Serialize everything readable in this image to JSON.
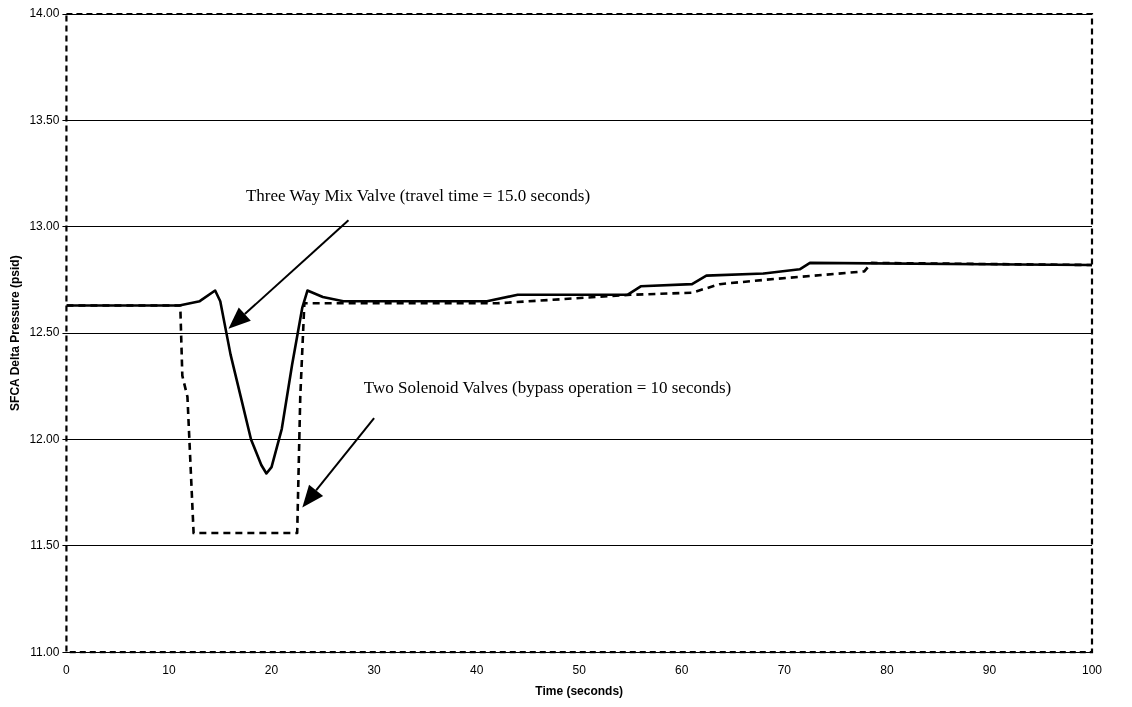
{
  "chart_data": {
    "type": "line",
    "xlabel": "Time (seconds)",
    "ylabel": "SFCA Delta Pressure (psid)",
    "xlim": [
      0,
      100
    ],
    "xticks": [
      0,
      10,
      20,
      30,
      40,
      50,
      60,
      70,
      80,
      90,
      100
    ],
    "ylim": [
      11,
      14
    ],
    "yticks": [
      {
        "value": 11,
        "label": "11.00"
      },
      {
        "value": 11.5,
        "label": "11.50"
      },
      {
        "value": 12,
        "label": "12.00"
      },
      {
        "value": 12.5,
        "label": "12.50"
      },
      {
        "value": 13,
        "label": "13.00"
      },
      {
        "value": 13.5,
        "label": "13.50"
      },
      {
        "value": 14,
        "label": "14.00"
      }
    ],
    "grid": "y",
    "legend": false,
    "marker": "none",
    "annotations": [
      "Three Way Mix Valve (travel time = 15.0 seconds)",
      "Two Solenoid Valves (bypass operation = 10 seconds)"
    ],
    "series": [
      {
        "color": "#000000",
        "line_style": "solid",
        "x": [
          0,
          11,
          13,
          14.5,
          15,
          16,
          17,
          18,
          19,
          19.5,
          20,
          21,
          22,
          23,
          23.5,
          25,
          27,
          41,
          44,
          54.7,
          56,
          61,
          62.4,
          68,
          71.5,
          72.5,
          100
        ],
        "values": [
          12.63,
          12.63,
          12.65,
          12.7,
          12.65,
          12.4,
          12.2,
          12.0,
          11.88,
          11.84,
          11.87,
          12.05,
          12.35,
          12.62,
          12.7,
          12.67,
          12.65,
          12.65,
          12.68,
          12.68,
          12.72,
          12.73,
          12.77,
          12.78,
          12.8,
          12.83,
          12.82
        ]
      },
      {
        "color": "#000000",
        "line_style": "dashed",
        "x": [
          0,
          11.1,
          11.3,
          11.8,
          12.4,
          22.5,
          22.8,
          23.2,
          25,
          42,
          55,
          61,
          63.7,
          68,
          77.8,
          78.5,
          100
        ],
        "values": [
          12.63,
          12.63,
          12.3,
          12.2,
          11.56,
          11.56,
          12.2,
          12.64,
          12.64,
          12.64,
          12.68,
          12.69,
          12.73,
          12.75,
          12.79,
          12.83,
          12.82
        ]
      }
    ]
  }
}
